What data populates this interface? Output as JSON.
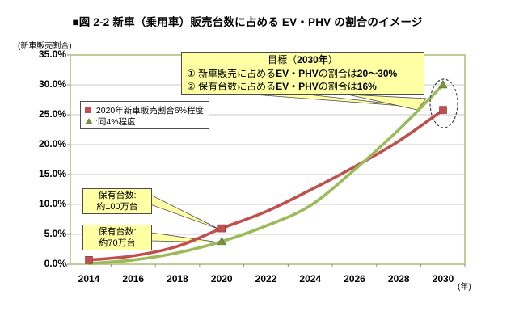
{
  "figure": {
    "title": "■図 2-2  新車（乗用車）販売台数に占める EV・PHV の割合のイメージ",
    "y_axis_unit": "(新車販売割合)",
    "x_axis_unit": "(年)"
  },
  "legend": {
    "items": [
      {
        "marker": "square",
        "label": ":2020年新車販売割合6%程度"
      },
      {
        "marker": "triangle",
        "label": ":同4%程度"
      }
    ]
  },
  "goal_box": {
    "title_segments": [
      {
        "t": "目標（",
        "b": false
      },
      {
        "t": "2030年",
        "b": true
      },
      {
        "t": "）",
        "b": false
      }
    ],
    "lines": [
      {
        "segments": [
          {
            "t": "①  新車販売に占める",
            "b": false
          },
          {
            "t": "EV・PHV",
            "b": true
          },
          {
            "t": "の割合は",
            "b": false
          },
          {
            "t": "20～30%",
            "b": true
          }
        ]
      },
      {
        "segments": [
          {
            "t": "②  保有台数に占める",
            "b": false
          },
          {
            "t": "EV・PHV",
            "b": true
          },
          {
            "t": "の割合は",
            "b": false
          },
          {
            "t": "16%",
            "b": true
          }
        ]
      }
    ]
  },
  "callouts": [
    {
      "line1": "保有台数:",
      "line2": "約100万台"
    },
    {
      "line1": "保有台数:",
      "line2": "約70万台"
    }
  ],
  "colors": {
    "series_red": "#c0504d",
    "series_green": "#9bbb59",
    "green_marker": "#77933c",
    "callout_bg": "#ffffa3",
    "callout_border": "#4d4d4d",
    "plot_border": "#adc279",
    "gridline": "#c9c9c9",
    "tick": "#8f8f8f",
    "annotation_ellipse": "#404040"
  },
  "chart_data": {
    "type": "line",
    "x": [
      2014,
      2016,
      2018,
      2020,
      2022,
      2024,
      2026,
      2028,
      2030
    ],
    "series": [
      {
        "name": "2020年新車販売割合6%程度",
        "color": "#c0504d",
        "marker": "square",
        "marker_years": [
          2014,
          2020,
          2030
        ],
        "values": [
          0.7,
          1.4,
          3.0,
          6.0,
          8.8,
          12.4,
          16.3,
          20.6,
          25.8
        ]
      },
      {
        "name": "同4%程度",
        "color": "#9bbb59",
        "marker": "triangle",
        "marker_color": "#77933c",
        "marker_years": [
          2020,
          2030
        ],
        "values": [
          0.1,
          0.7,
          1.9,
          3.8,
          6.4,
          9.8,
          15.8,
          22.5,
          30.0
        ]
      }
    ],
    "ylim": [
      0,
      35
    ],
    "ytick_step": 5,
    "ytick_labels": [
      "0.0%",
      "5.0%",
      "10.0%",
      "15.0%",
      "20.0%",
      "25.0%",
      "30.0%",
      "35.0%"
    ],
    "xtick_labels": [
      "2014",
      "2016",
      "2018",
      "2020",
      "2022",
      "2024",
      "2026",
      "2028",
      "2030"
    ],
    "grid": true,
    "legend_position": "upper-left-inside",
    "annotations": {
      "ellipse_around_2030_endpoints": true,
      "goal_note": "目標（2030年）① 新車販売に占めるEV・PHVの割合は20～30% ② 保有台数に占めるEV・PHVの割合は16%",
      "point_notes": [
        {
          "at": "red 2020",
          "text": "保有台数: 約100万台"
        },
        {
          "at": "green 2020",
          "text": "保有台数: 約70万台"
        }
      ]
    }
  }
}
